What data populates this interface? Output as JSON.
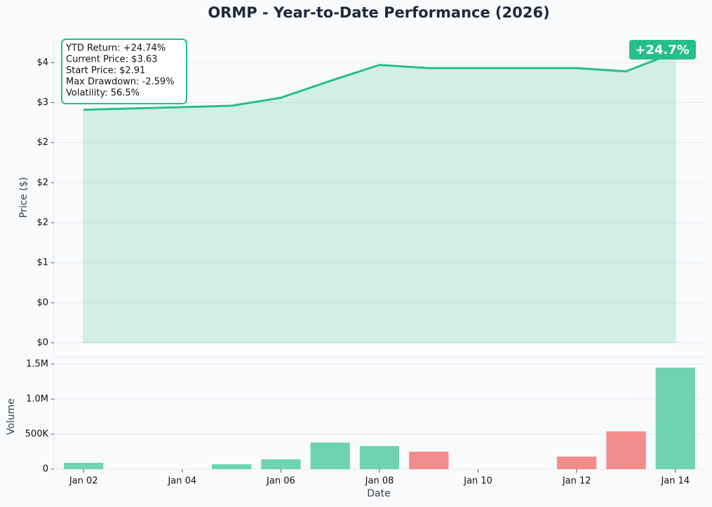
{
  "chart_data": [
    {
      "type": "area",
      "title": "ORMP - Year-to-Date Performance (2026)",
      "ylabel": "Price ($)",
      "x": [
        "Jan 02",
        "Jan 05",
        "Jan 06",
        "Jan 07",
        "Jan 08",
        "Jan 09",
        "Jan 12",
        "Jan 13",
        "Jan 14"
      ],
      "values": [
        2.91,
        2.96,
        3.06,
        3.27,
        3.47,
        3.43,
        3.43,
        3.39,
        3.63
      ],
      "color": "#26be8c",
      "ylim": [
        -0.18,
        3.8
      ],
      "yticks": [
        {
          "value": 0,
          "label": "$0"
        },
        {
          "value": 0.5,
          "label": "$0"
        },
        {
          "value": 1,
          "label": "$1"
        },
        {
          "value": 1.5,
          "label": "$2"
        },
        {
          "value": 2,
          "label": "$2"
        },
        {
          "value": 2.5,
          "label": "$2"
        },
        {
          "value": 3,
          "label": "$3"
        },
        {
          "value": 3.5,
          "label": "$4"
        }
      ],
      "grid": true,
      "annotation": [
        "YTD Return: +24.74%",
        "Current Price: $3.63",
        "Start Price: $2.91",
        "Max Drawdown: -2.59%",
        "Volatility: 56.5%"
      ],
      "badge": "+24.7%"
    },
    {
      "type": "bar",
      "xlabel": "Date",
      "ylabel": "Volume",
      "x": [
        "Jan 02",
        "Jan 05",
        "Jan 06",
        "Jan 07",
        "Jan 08",
        "Jan 09",
        "Jan 12",
        "Jan 13",
        "Jan 14"
      ],
      "values": [
        90000,
        70000,
        140000,
        380000,
        330000,
        250000,
        180000,
        540000,
        1450000
      ],
      "colors": [
        "#6dd3b0",
        "#6dd3b0",
        "#6dd3b0",
        "#6dd3b0",
        "#6dd3b0",
        "#f28b8b",
        "#f28b8b",
        "#f28b8b",
        "#6dd3b0"
      ],
      "ylim": [
        0,
        1530000
      ],
      "yticks": [
        0,
        {
          "value": 500000,
          "label": "500K"
        },
        {
          "value": 1000000,
          "label": "1.0M"
        },
        {
          "value": 1500000,
          "label": "1.5M"
        }
      ],
      "xticks": [
        "Jan 02",
        "Jan 04",
        "Jan 06",
        "Jan 08",
        "Jan 10",
        "Jan 12",
        "Jan 14"
      ],
      "grid": true
    }
  ]
}
